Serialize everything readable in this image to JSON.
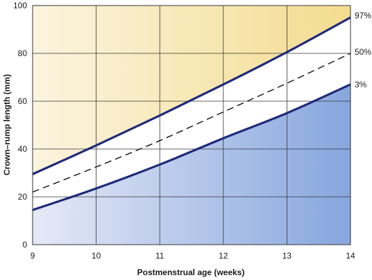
{
  "chart_data": {
    "type": "line",
    "title": "",
    "xlabel": "Postmenstrual age (weeks)",
    "ylabel": "Crown–rump length (mm)",
    "xlim": [
      9,
      14
    ],
    "ylim": [
      0,
      100
    ],
    "x_ticks": [
      "9",
      "10",
      "11",
      "12",
      "13",
      "14"
    ],
    "y_ticks": [
      "0",
      "20",
      "40",
      "60",
      "80",
      "100"
    ],
    "grid": true,
    "x": [
      9,
      10,
      11,
      12,
      13,
      14
    ],
    "series": [
      {
        "name": "97%",
        "style": "solid",
        "values": [
          29.5,
          41.5,
          54,
          67,
          80.5,
          95
        ]
      },
      {
        "name": "50%",
        "style": "dashed",
        "values": [
          22,
          32.5,
          43.5,
          55.5,
          67.5,
          80
        ]
      },
      {
        "name": "3%",
        "style": "solid",
        "values": [
          14.5,
          23.5,
          33.5,
          44.5,
          55,
          67
        ]
      }
    ],
    "colors": {
      "curve": "#1f2a7a",
      "dashed": "#111111",
      "upper_fill_light": "#fbf4df",
      "upper_fill_dark": "#f3dc8f",
      "lower_fill_light": "#e6e9f7",
      "lower_fill_dark": "#86a6de",
      "grid": "#333333"
    }
  }
}
